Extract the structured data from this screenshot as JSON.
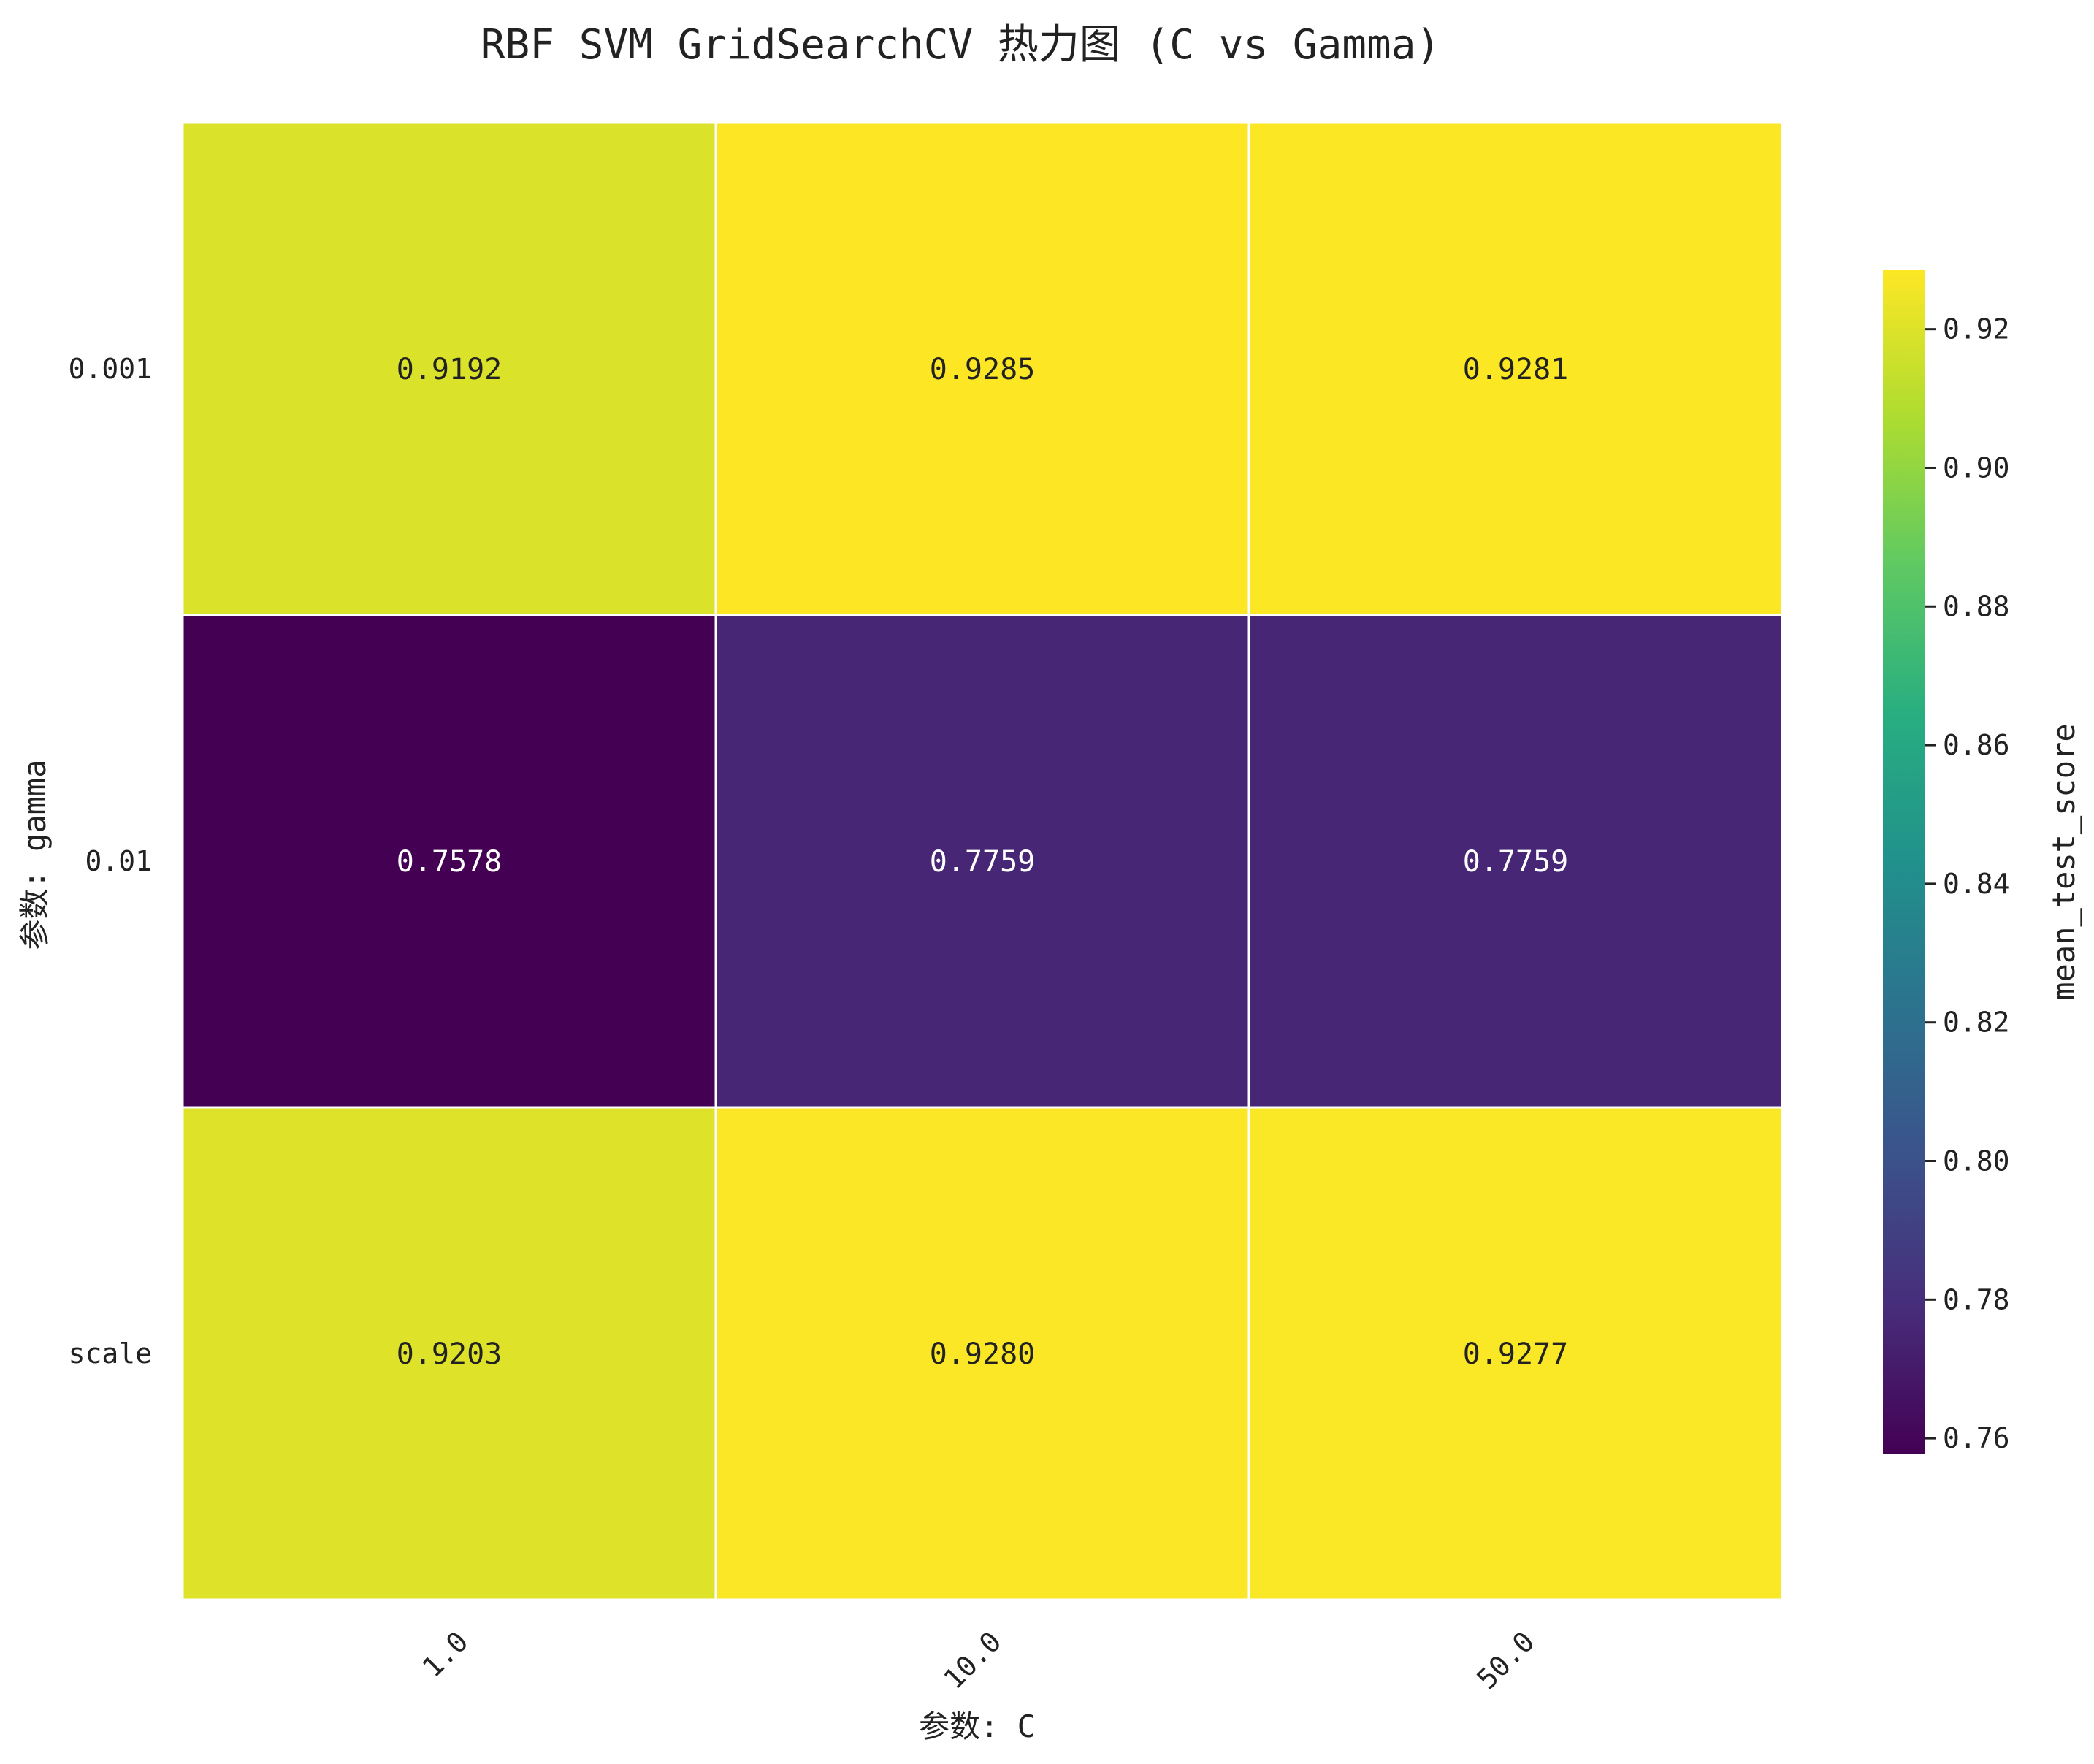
{
  "chart_data": {
    "type": "heatmap",
    "title": "RBF SVM GridSearchCV 热力图 (C vs Gamma)",
    "xlabel": "参数: C",
    "ylabel": "参数: gamma",
    "x_categories": [
      "1.0",
      "10.0",
      "50.0"
    ],
    "y_categories": [
      "0.001",
      "0.01",
      "scale"
    ],
    "values": [
      [
        0.9192,
        0.9285,
        0.9281
      ],
      [
        0.7578,
        0.7759,
        0.7759
      ],
      [
        0.9203,
        0.928,
        0.9277
      ]
    ],
    "value_format_decimals": 4,
    "colormap": "viridis",
    "colorbar": {
      "label": "mean_test_score",
      "range": [
        0.7578,
        0.9285
      ],
      "ticks": [
        0.76,
        0.78,
        0.8,
        0.82,
        0.84,
        0.86,
        0.88,
        0.9,
        0.92
      ],
      "tick_labels": [
        "0.76",
        "0.78",
        "0.80",
        "0.82",
        "0.84",
        "0.86",
        "0.88",
        "0.90",
        "0.92"
      ]
    },
    "cell_border_color": "#ffffff",
    "dark_text_color": "#222222",
    "light_text_color": "#ffffff"
  }
}
